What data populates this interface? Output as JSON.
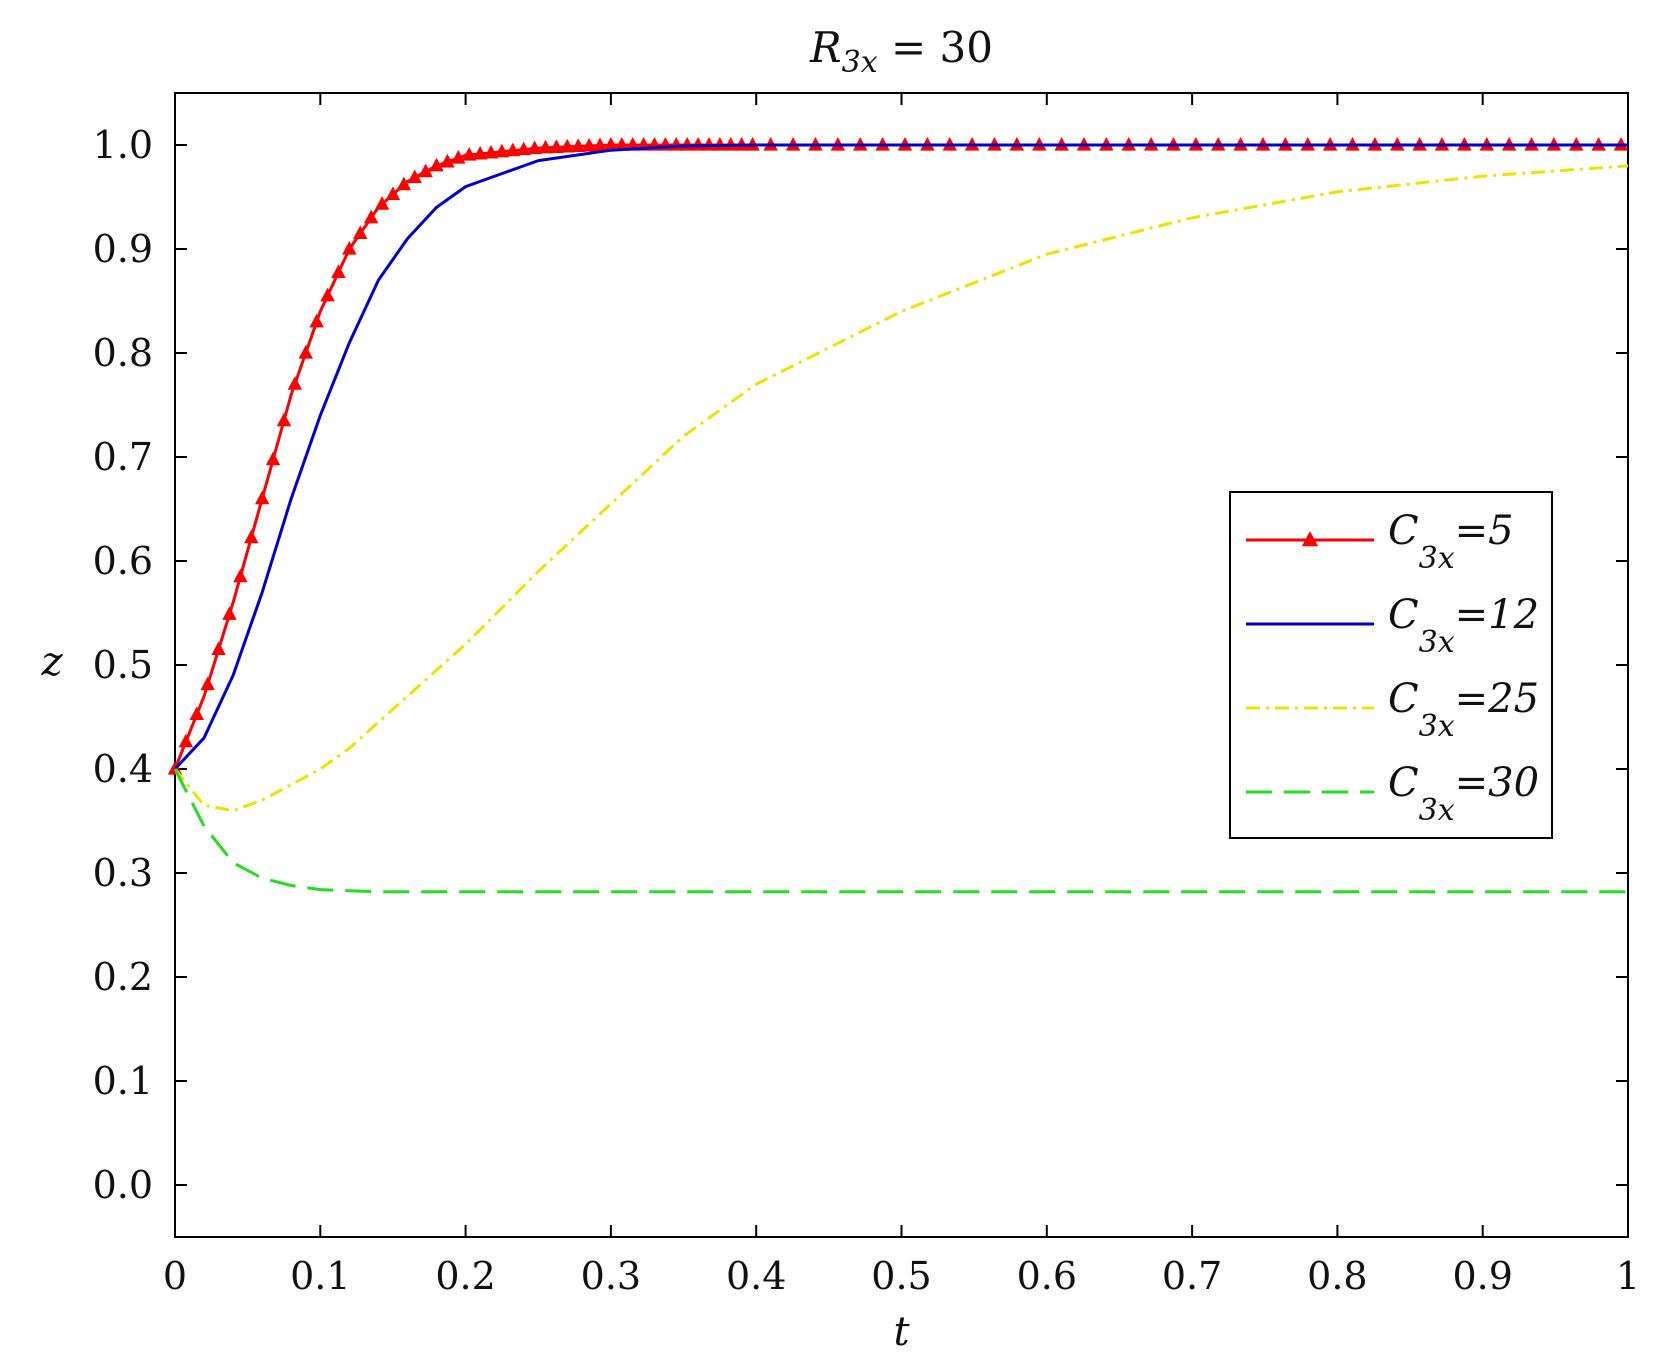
{
  "chart_data": {
    "type": "line",
    "title": "R3x = 30",
    "title_parts": {
      "main": "R",
      "sub": "3x",
      "rest": " = 30"
    },
    "xlabel": "t",
    "ylabel": "z",
    "xlim": [
      0,
      1
    ],
    "ylim": [
      -0.05,
      1.05
    ],
    "x_ticks": [
      0,
      0.1,
      0.2,
      0.3,
      0.4,
      0.5,
      0.6,
      0.7,
      0.8,
      0.9,
      1
    ],
    "x_tick_labels": [
      "0",
      "0.1",
      "0.2",
      "0.3",
      "0.4",
      "0.5",
      "0.6",
      "0.7",
      "0.8",
      "0.9",
      "1"
    ],
    "y_ticks": [
      0.0,
      0.1,
      0.2,
      0.3,
      0.4,
      0.5,
      0.6,
      0.7,
      0.8,
      0.9,
      1.0
    ],
    "y_tick_labels": [
      "0.0",
      "0.1",
      "0.2",
      "0.3",
      "0.4",
      "0.5",
      "0.6",
      "0.7",
      "0.8",
      "0.9",
      "1.0"
    ],
    "grid": false,
    "legend_position": "right-middle",
    "x": [
      0,
      0.02,
      0.04,
      0.06,
      0.08,
      0.1,
      0.12,
      0.14,
      0.16,
      0.18,
      0.2,
      0.25,
      0.3,
      0.35,
      0.4,
      0.5,
      0.6,
      0.7,
      0.8,
      0.9,
      1.0
    ],
    "series": [
      {
        "name": "C3x=5",
        "legend_main": "C",
        "legend_sub": "3x",
        "legend_rest": "=5",
        "color": "#ff0000",
        "style": "solid-triangles",
        "values": [
          0.4,
          0.47,
          0.56,
          0.66,
          0.76,
          0.84,
          0.9,
          0.94,
          0.965,
          0.98,
          0.99,
          0.997,
          1.0,
          1.0,
          1.0,
          1.0,
          1.0,
          1.0,
          1.0,
          1.0,
          1.0
        ]
      },
      {
        "name": "C3x=12",
        "legend_main": "C",
        "legend_sub": "3x",
        "legend_rest": "=12",
        "color": "#0000cc",
        "style": "solid",
        "values": [
          0.4,
          0.43,
          0.49,
          0.57,
          0.66,
          0.74,
          0.81,
          0.87,
          0.91,
          0.94,
          0.96,
          0.985,
          0.995,
          0.999,
          1.0,
          1.0,
          1.0,
          1.0,
          1.0,
          1.0,
          1.0
        ]
      },
      {
        "name": "C3x=25",
        "legend_main": "C",
        "legend_sub": "3x",
        "legend_rest": "=25",
        "color": "#f0e000",
        "style": "dashdot",
        "values": [
          0.4,
          0.365,
          0.36,
          0.37,
          0.385,
          0.4,
          0.42,
          0.445,
          0.47,
          0.495,
          0.52,
          0.59,
          0.655,
          0.72,
          0.77,
          0.84,
          0.895,
          0.93,
          0.955,
          0.97,
          0.98
        ]
      },
      {
        "name": "C3x=30",
        "legend_main": "C",
        "legend_sub": "3x",
        "legend_rest": "=30",
        "color": "#22dd22",
        "style": "dashed",
        "values": [
          0.4,
          0.345,
          0.31,
          0.295,
          0.288,
          0.284,
          0.283,
          0.282,
          0.282,
          0.282,
          0.282,
          0.282,
          0.282,
          0.282,
          0.282,
          0.282,
          0.282,
          0.282,
          0.282,
          0.282,
          0.282
        ]
      }
    ]
  }
}
